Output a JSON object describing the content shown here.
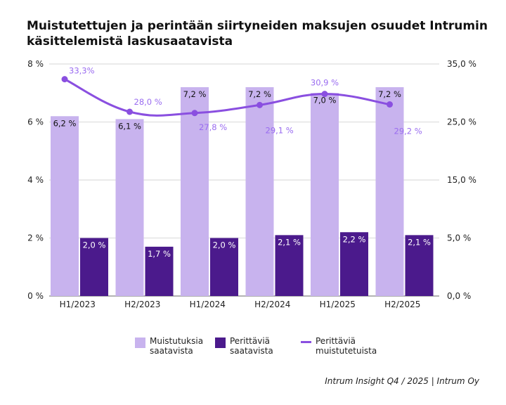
{
  "chart_data": {
    "type": "bar+line",
    "title": "Muistutettujen ja perintään siirtyneiden maksujen osuudet Intrumin käsittelemistä laskusaatavista",
    "categories": [
      "H1/2023",
      "H2/2023",
      "H1/2024",
      "H2/2024",
      "H1/2025",
      "H2/2025"
    ],
    "left_axis": {
      "ylim": [
        0,
        8
      ],
      "ticks": [
        "0 %",
        "2 %",
        "4 %",
        "6 %",
        "8 %"
      ],
      "tick_values": [
        0,
        2,
        4,
        6,
        8
      ]
    },
    "right_axis": {
      "ticks": [
        "0,0 %",
        "5,0 %",
        "15,0 %",
        "25,0 %",
        "35,0 %"
      ]
    },
    "grid": true,
    "legend_position": "bottom",
    "series": [
      {
        "name": "Muistutuksia saatavista",
        "type": "bar",
        "axis": "left",
        "color": "#c8b3ee",
        "values": [
          6.2,
          6.1,
          7.2,
          7.2,
          7.0,
          7.2
        ],
        "labels": [
          "6,2 %",
          "6,1 %",
          "7,2 %",
          "7,2 %",
          "7,0 %",
          "7,2 %"
        ]
      },
      {
        "name": "Perittäviä saatavista",
        "type": "bar",
        "axis": "left",
        "color": "#4b1a8c",
        "values": [
          2.0,
          1.7,
          2.0,
          2.1,
          2.2,
          2.1
        ],
        "labels": [
          "2,0 %",
          "1,7 %",
          "2,0 %",
          "2,1 %",
          "2,2 %",
          "2,1 %"
        ]
      },
      {
        "name": "Perittäviä muistutetuista",
        "type": "line",
        "axis": "right",
        "color": "#8a4fe0",
        "values": [
          33.3,
          28.0,
          27.8,
          29.1,
          30.9,
          29.2
        ],
        "labels": [
          "33,3%",
          "28,0 %",
          "27,8 %",
          "29,1 %",
          "30,9 %",
          "29,2 %"
        ]
      }
    ]
  },
  "legend": [
    {
      "line1": "Muistutuksia",
      "line2": "saatavista"
    },
    {
      "line1": "Perittäviä",
      "line2": "saatavista"
    },
    {
      "line1": "Perittäviä",
      "line2": "muistutetuista"
    }
  ],
  "source": "Intrum Insight Q4 / 2025 | Intrum Oy"
}
